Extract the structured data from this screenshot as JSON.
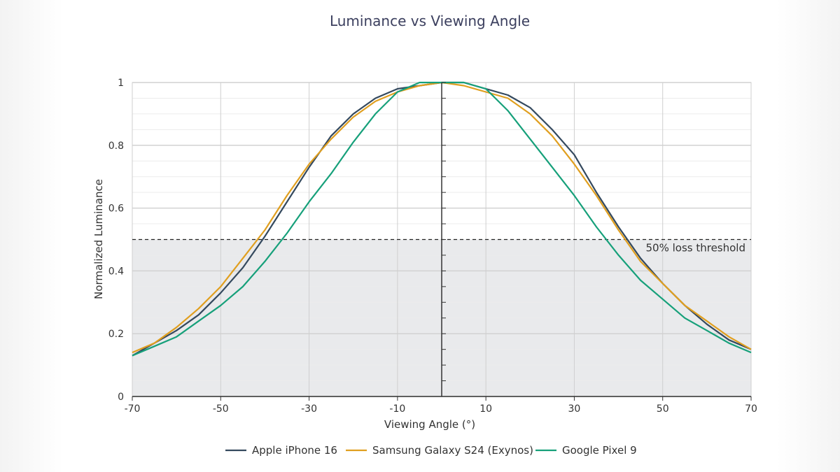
{
  "chart_data": {
    "type": "line",
    "title": "Luminance vs Viewing Angle",
    "xlabel": "Viewing Angle (°)",
    "ylabel": "Normalized Luminance",
    "xlim": [
      -70,
      70
    ],
    "ylim": [
      0,
      1
    ],
    "xticks": [
      -70,
      -50,
      -30,
      -10,
      10,
      30,
      50,
      70
    ],
    "yticks": [
      0,
      0.2,
      0.4,
      0.6,
      0.8,
      1
    ],
    "ytick_labels": [
      "0",
      "0.2",
      "0.4",
      "0.6",
      "0.8",
      "1"
    ],
    "grid": true,
    "legend_position": "bottom",
    "x": [
      -70,
      -65,
      -60,
      -55,
      -50,
      -45,
      -40,
      -35,
      -30,
      -25,
      -20,
      -15,
      -10,
      -5,
      0,
      5,
      10,
      15,
      20,
      25,
      30,
      35,
      40,
      45,
      50,
      55,
      60,
      65,
      70
    ],
    "series": [
      {
        "name": "Apple iPhone 16",
        "color": "#34495e",
        "values": [
          0.13,
          0.17,
          0.21,
          0.26,
          0.33,
          0.41,
          0.51,
          0.62,
          0.73,
          0.83,
          0.9,
          0.95,
          0.98,
          0.99,
          1.0,
          1.0,
          0.98,
          0.96,
          0.92,
          0.85,
          0.77,
          0.65,
          0.54,
          0.44,
          0.36,
          0.29,
          0.23,
          0.18,
          0.15
        ]
      },
      {
        "name": "Samsung Galaxy S24 (Exynos)",
        "color": "#e09f1f",
        "values": [
          0.14,
          0.17,
          0.22,
          0.28,
          0.35,
          0.44,
          0.53,
          0.64,
          0.74,
          0.82,
          0.89,
          0.94,
          0.97,
          0.99,
          1.0,
          0.99,
          0.97,
          0.95,
          0.9,
          0.83,
          0.74,
          0.64,
          0.53,
          0.43,
          0.36,
          0.29,
          0.24,
          0.19,
          0.15
        ]
      },
      {
        "name": "Google Pixel 9",
        "color": "#16a07a",
        "values": [
          0.13,
          0.16,
          0.19,
          0.24,
          0.29,
          0.35,
          0.43,
          0.52,
          0.62,
          0.71,
          0.81,
          0.9,
          0.97,
          1.0,
          1.0,
          1.0,
          0.98,
          0.91,
          0.82,
          0.73,
          0.64,
          0.54,
          0.45,
          0.37,
          0.31,
          0.25,
          0.21,
          0.17,
          0.14
        ]
      }
    ],
    "annotations": [
      {
        "type": "threshold",
        "y": 0.5,
        "label": "50% loss threshold",
        "shade_below": true
      }
    ]
  }
}
